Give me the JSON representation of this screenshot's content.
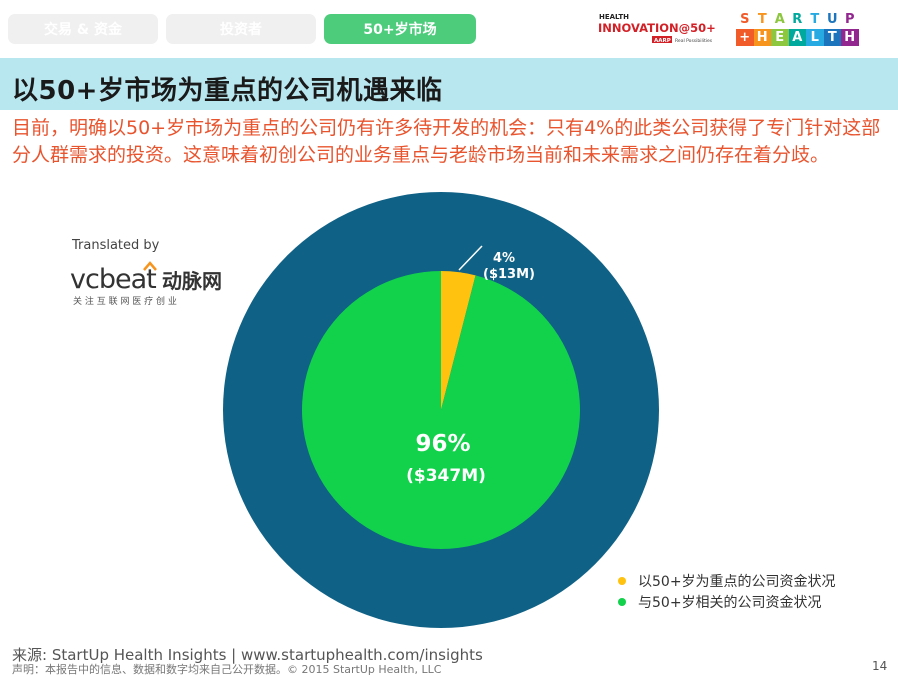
{
  "tabs": [
    {
      "label": "交易 & 资金",
      "active": false
    },
    {
      "label": "投资者",
      "active": false
    },
    {
      "label": "50+岁市场",
      "active": true
    }
  ],
  "logos": {
    "innovation_health": "HEALTH",
    "innovation_main": "INNOVATION@50+",
    "innovation_aarp": "AARP",
    "innovation_tag": "Real Possibilities",
    "startup_top": [
      "S",
      "T",
      "A",
      "R",
      "T",
      "U",
      "P"
    ],
    "startup_bottom": [
      "+",
      "H",
      "E",
      "A",
      "L",
      "T",
      "H"
    ],
    "startup_colors": [
      "#f15a29",
      "#f7941d",
      "#8dc63f",
      "#00a99d",
      "#27aae1",
      "#1c75bc",
      "#92278f"
    ]
  },
  "page_title": "以50+岁市场为重点的公司机遇来临",
  "subtitle": "目前，明确以50+岁市场为重点的公司仍有许多待开发的机会：只有4%的此类公司获得了专门针对这部分人群需求的投资。这意味着初创公司的业务重点与老龄市场当前和未来需求之间仍存在着分歧。",
  "translated_by": "Translated by",
  "vcbeat": {
    "brand": "vcbeat",
    "cn": "动脉网",
    "tagline": "关 注 互 联 网 医 疗 创 业"
  },
  "chart_data": {
    "type": "pie",
    "slices": [
      {
        "name": "以50+岁为重点的公司资金状况",
        "value": 4,
        "amount": 13,
        "label": "4%",
        "sublabel": "($13M)",
        "color": "#ffc20e"
      },
      {
        "name": "与50+岁相关的公司资金状况",
        "value": 96,
        "amount": 347,
        "label": "96%",
        "sublabel": "($347M)",
        "color": "#12d14b"
      }
    ],
    "ring_color": "#0f6186",
    "legend_position": "bottom-right"
  },
  "source": "来源: StartUp Health Insights | www.startuphealth.com/insights",
  "disclaimer": "声明：本报告中的信息、数据和数字均来自己公开数据。© 2015 StartUp Health, LLC",
  "page_number": "14"
}
